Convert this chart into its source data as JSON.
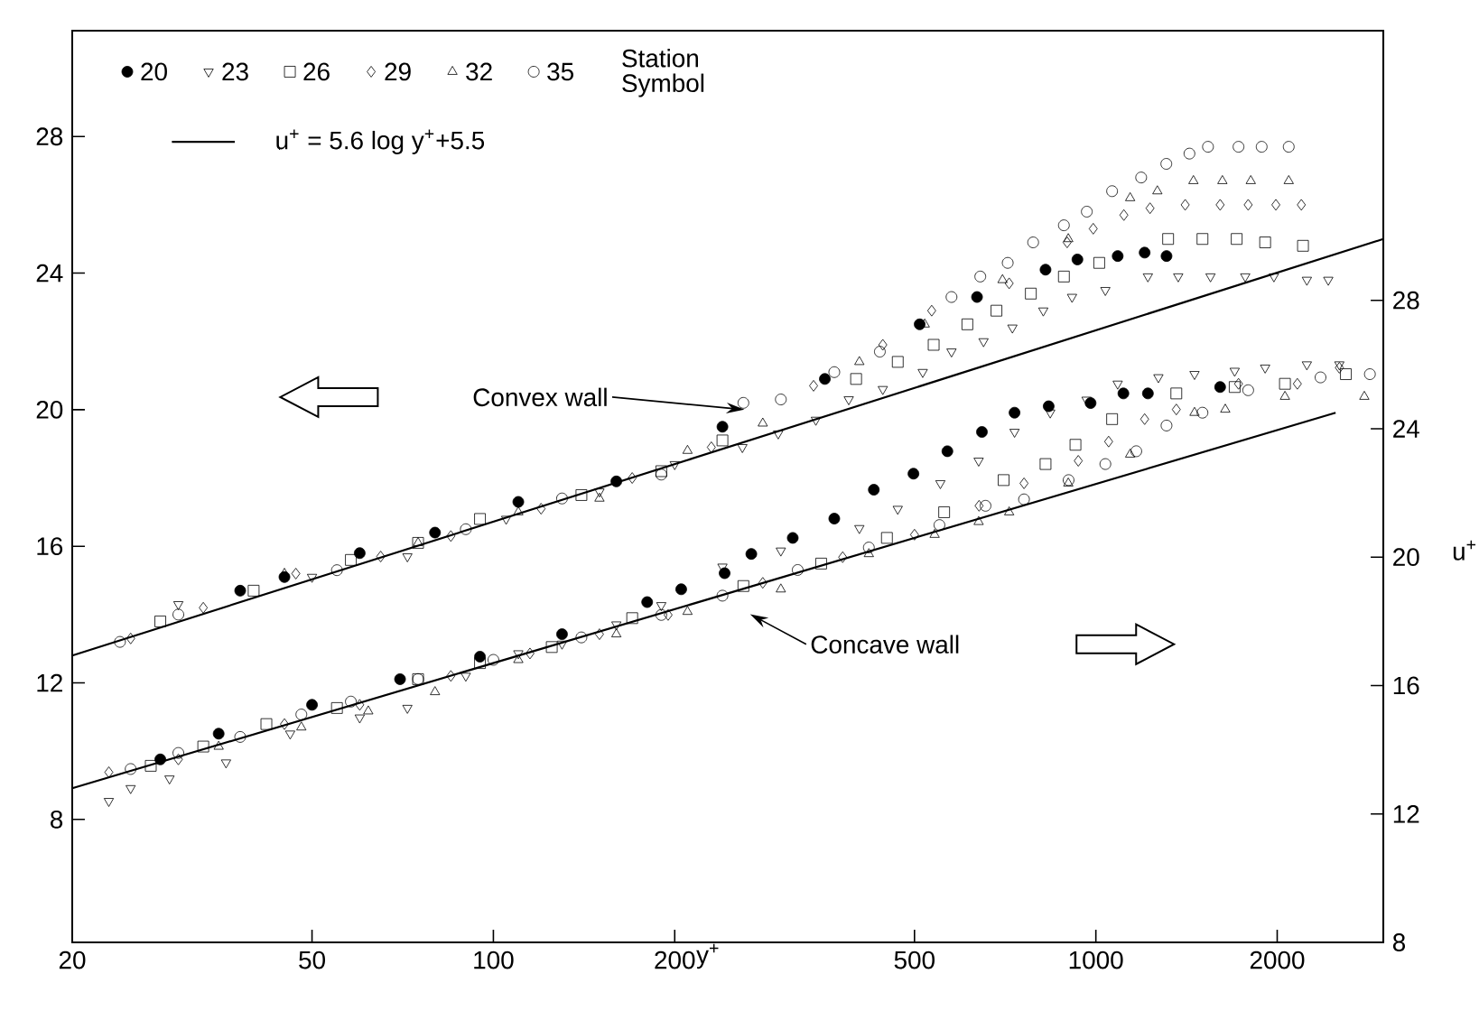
{
  "chart_data": {
    "type": "scatter",
    "xlabel": "y$^{+}$",
    "y2label": "u$^{+}$",
    "legend_title": "Station",
    "legend": "top left",
    "log": "x",
    "xlim": [
      20,
      3000
    ],
    "xticks": [
      20,
      50,
      100,
      200,
      500,
      1000,
      2000
    ],
    "ylim": [
      4.4,
      31.1
    ],
    "yticks": [
      8,
      12,
      16,
      20,
      24,
      28
    ],
    "y2lim": [
      8,
      36.4
    ],
    "y2ticks": [
      8,
      12,
      16,
      20,
      24,
      28
    ],
    "annotations": [
      "Symbol",
      {
        "text": "Convex wall",
        "x": 261,
        "y": 20.0
      },
      "Concave wall"
    ],
    "series": [
      {
        "name": "20",
        "type": "scatter",
        "marker": "circle-filled",
        "color": "#000000",
        "x": [
          38,
          45,
          60,
          80,
          110,
          160,
          240,
          355,
          510,
          635,
          825,
          932,
          1087,
          1205,
          1310
        ],
        "values": [
          14.7,
          15.1,
          15.8,
          16.4,
          17.3,
          17.9,
          19.5,
          20.9,
          22.5,
          23.3,
          24.1,
          24.4,
          24.5,
          24.6,
          24.5
        ]
      },
      {
        "name": "23",
        "type": "scatter",
        "marker": "triangle-down",
        "color": "#000000",
        "x": [
          30,
          50,
          72,
          105,
          150,
          200,
          259,
          297,
          343,
          389,
          443,
          516,
          576,
          651,
          727,
          818,
          913,
          1037,
          1220,
          1370,
          1550,
          1770,
          1975,
          2240,
          2431
        ],
        "values": [
          14.3,
          15.1,
          15.7,
          16.8,
          17.6,
          18.4,
          18.9,
          19.3,
          19.7,
          20.3,
          20.6,
          21.1,
          21.7,
          22.0,
          22.4,
          22.9,
          23.3,
          23.5,
          23.9,
          23.9,
          23.9,
          23.9,
          23.9,
          23.8,
          23.8
        ]
      },
      {
        "name": "26",
        "type": "scatter",
        "marker": "square",
        "color": "#000000",
        "x": [
          28,
          40,
          58,
          75,
          95,
          140,
          190,
          240,
          400,
          469,
          538,
          612,
          684,
          780,
          885,
          1013,
          1318,
          1503,
          1713,
          1910,
          2207
        ],
        "values": [
          13.8,
          14.7,
          15.6,
          16.1,
          16.8,
          17.5,
          18.2,
          19.1,
          20.9,
          21.4,
          21.9,
          22.5,
          22.9,
          23.4,
          23.9,
          24.3,
          25.0,
          25.0,
          25.0,
          24.9,
          24.8
        ]
      },
      {
        "name": "29",
        "type": "scatter",
        "marker": "diamond",
        "color": "#000000",
        "x": [
          25,
          33,
          47,
          65,
          85,
          120,
          170,
          230,
          340,
          443,
          534,
          718,
          896,
          990,
          1113,
          1230,
          1407,
          1608,
          1790,
          1990,
          2193
        ],
        "values": [
          13.3,
          14.2,
          15.2,
          15.7,
          16.3,
          17.1,
          18.0,
          18.9,
          20.7,
          21.9,
          22.9,
          23.7,
          24.9,
          25.3,
          25.7,
          25.9,
          26.0,
          26.0,
          26.0,
          26.0,
          26.0
        ]
      },
      {
        "name": "32",
        "type": "scatter",
        "marker": "triangle",
        "color": "#000000",
        "x": [
          45,
          75,
          110,
          150,
          210,
          280,
          405,
          520,
          700,
          900,
          1140,
          1265,
          1452,
          1622,
          1808,
          2090
        ],
        "values": [
          15.2,
          16.1,
          17.0,
          17.4,
          18.8,
          19.6,
          21.4,
          22.5,
          23.8,
          25.0,
          26.2,
          26.4,
          26.7,
          26.7,
          26.7,
          26.7
        ]
      },
      {
        "name": "35",
        "type": "scatter",
        "marker": "circle",
        "color": "#000000",
        "x": [
          24,
          30,
          55,
          90,
          130,
          190,
          260,
          300,
          368,
          438,
          576,
          643,
          714,
          787,
          885,
          966,
          1064,
          1189,
          1309,
          1430,
          1535,
          1725,
          1885,
          2090
        ],
        "values": [
          13.2,
          14.0,
          15.3,
          16.5,
          17.4,
          18.1,
          20.2,
          20.3,
          21.1,
          21.7,
          23.3,
          23.9,
          24.3,
          24.9,
          25.4,
          25.8,
          26.4,
          26.8,
          27.2,
          27.5,
          27.7,
          27.7,
          27.7,
          27.7
        ]
      },
      {
        "name": "u$^{+}$ = 5.6 log y$^{+}$+5.5",
        "type": "line",
        "line_style": "solid",
        "color": "#000000",
        "x": [
          20,
          3000
        ],
        "values": [
          12.8,
          25.0
        ]
      },
      {
        "type": "scatter",
        "axis": "y2",
        "marker": "circle-filled",
        "color": "#000000",
        "x": [
          28,
          35,
          50,
          70,
          95,
          130,
          180,
          205,
          242,
          268,
          314,
          368,
          428,
          498,
          567,
          647,
          733,
          835,
          980,
          1111,
          1220,
          1608
        ],
        "values": [
          13.7,
          14.5,
          15.4,
          16.2,
          16.9,
          17.6,
          18.6,
          19.0,
          19.5,
          20.1,
          20.6,
          21.2,
          22.1,
          22.6,
          23.3,
          23.9,
          24.5,
          24.7,
          24.8,
          25.1,
          25.1,
          25.3
        ]
      },
      {
        "type": "scatter",
        "axis": "y2",
        "marker": "triangle-down",
        "color": "#000000",
        "x": [
          23,
          25,
          29,
          36,
          46,
          60,
          72,
          90,
          110,
          130,
          160,
          190,
          240,
          300,
          405,
          469,
          552,
          639,
          733,
          840,
          965,
          1087,
          1270,
          1458,
          1700,
          1910,
          2240,
          2536
        ],
        "values": [
          12.4,
          12.8,
          13.1,
          13.6,
          14.5,
          15.0,
          15.3,
          16.3,
          17.0,
          17.3,
          17.9,
          18.5,
          19.7,
          20.2,
          20.9,
          21.5,
          22.3,
          23.0,
          23.9,
          24.5,
          24.9,
          25.4,
          25.6,
          25.7,
          25.8,
          25.9,
          26.0,
          26.0
        ]
      },
      {
        "type": "scatter",
        "axis": "y2",
        "marker": "square",
        "color": "#000000",
        "x": [
          27,
          33,
          42,
          55,
          75,
          95,
          125,
          170,
          260,
          350,
          450,
          560,
          703,
          825,
          925,
          1064,
          1360,
          1700,
          2060,
          2600
        ],
        "values": [
          13.5,
          14.1,
          14.8,
          15.3,
          16.2,
          16.7,
          17.2,
          18.1,
          19.1,
          19.8,
          20.6,
          21.4,
          22.4,
          22.9,
          23.5,
          24.3,
          25.1,
          25.3,
          25.4,
          25.7
        ]
      },
      {
        "type": "scatter",
        "axis": "y2",
        "marker": "diamond",
        "color": "#000000",
        "x": [
          23,
          30,
          45,
          60,
          85,
          115,
          150,
          195,
          280,
          380,
          500,
          640,
          760,
          935,
          1050,
          1205,
          1360,
          1725,
          2160,
          2536
        ],
        "values": [
          13.3,
          13.7,
          14.8,
          15.4,
          16.3,
          17.0,
          17.6,
          18.2,
          19.2,
          20.0,
          20.7,
          21.6,
          22.3,
          23.0,
          23.6,
          24.3,
          24.6,
          25.4,
          25.4,
          25.9
        ]
      },
      {
        "type": "scatter",
        "axis": "y2",
        "marker": "triangle",
        "color": "#000000",
        "x": [
          35,
          48,
          62,
          80,
          110,
          160,
          210,
          300,
          420,
          540,
          639,
          718,
          900,
          1140,
          1458,
          1640,
          2060,
          2790
        ],
        "values": [
          14.1,
          14.7,
          15.2,
          15.8,
          16.8,
          17.6,
          18.3,
          19.0,
          20.1,
          20.7,
          21.1,
          21.4,
          22.3,
          23.2,
          24.5,
          24.6,
          25.0,
          25.0
        ]
      },
      {
        "type": "scatter",
        "axis": "y2",
        "marker": "circle",
        "color": "#000000",
        "x": [
          25,
          30,
          38,
          48,
          58,
          75,
          100,
          140,
          190,
          240,
          320,
          420,
          550,
          656,
          760,
          901,
          1037,
          1167,
          1310,
          1503,
          1790,
          2360,
          2850
        ],
        "values": [
          13.4,
          13.9,
          14.4,
          15.1,
          15.5,
          16.2,
          16.8,
          17.5,
          18.2,
          18.8,
          19.6,
          20.3,
          21.0,
          21.6,
          21.8,
          22.4,
          22.9,
          23.3,
          24.1,
          24.5,
          25.2,
          25.6,
          25.7
        ]
      },
      {
        "type": "line",
        "axis": "y2",
        "line_style": "solid",
        "color": "#000000",
        "x": [
          20,
          2500
        ],
        "values": [
          12.8,
          24.5
        ]
      }
    ]
  }
}
